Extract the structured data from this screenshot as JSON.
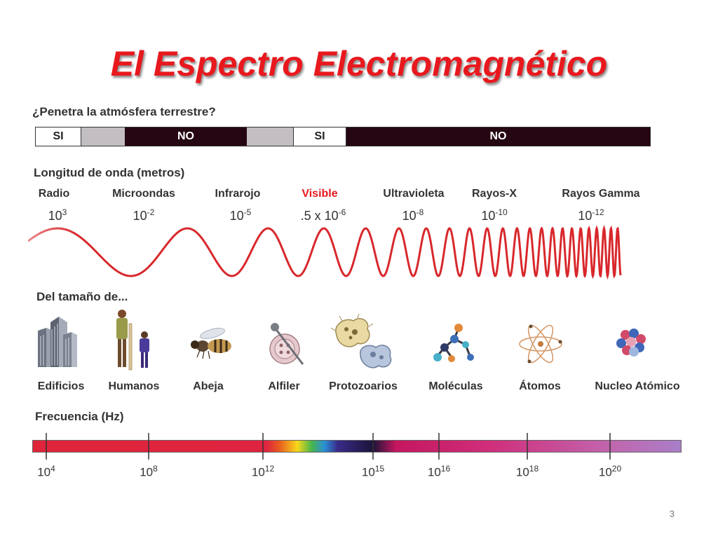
{
  "title": "El Espectro Electromagnético",
  "atmosphere": {
    "question": "¿Penetra la atmósfera terrestre?",
    "segments": [
      {
        "label": "SI",
        "kind": "si"
      },
      {
        "label": "",
        "kind": "gray"
      },
      {
        "label": "NO",
        "kind": "no"
      },
      {
        "label": "",
        "kind": "gray"
      },
      {
        "label": "SI",
        "kind": "si"
      },
      {
        "label": "NO",
        "kind": "no"
      }
    ]
  },
  "wavelength": {
    "heading": "Longitud de onda (metros)",
    "bands": [
      {
        "name": "Radio",
        "base": "10",
        "exp": "3"
      },
      {
        "name": "Microondas",
        "base": "10",
        "exp": "-2"
      },
      {
        "name": "Infrarojo",
        "base": "10",
        "exp": "-5"
      },
      {
        "name": "Visible",
        "base": ".5 x 10",
        "exp": "-6"
      },
      {
        "name": "Ultravioleta",
        "base": "10",
        "exp": "-8"
      },
      {
        "name": "Rayos-X",
        "base": "10",
        "exp": "-10"
      },
      {
        "name": "Rayos Gamma",
        "base": "10",
        "exp": "-12"
      }
    ]
  },
  "size": {
    "heading": "Del tamaño de...",
    "items": [
      {
        "label": "Edificios",
        "icon": "buildings-icon"
      },
      {
        "label": "Humanos",
        "icon": "humans-icon"
      },
      {
        "label": "Abeja",
        "icon": "bee-icon"
      },
      {
        "label": "Alfiler",
        "icon": "pin-icon"
      },
      {
        "label": "Protozoarios",
        "icon": "protozoa-icon"
      },
      {
        "label": "Moléculas",
        "icon": "molecule-icon"
      },
      {
        "label": "Átomos",
        "icon": "atom-icon"
      },
      {
        "label": "Nucleo Atómico",
        "icon": "nucleus-icon"
      }
    ]
  },
  "frequency": {
    "heading": "Frecuencia (Hz)",
    "ticks": [
      {
        "base": "10",
        "exp": "4"
      },
      {
        "base": "10",
        "exp": "8"
      },
      {
        "base": "10",
        "exp": "12"
      },
      {
        "base": "10",
        "exp": "15"
      },
      {
        "base": "10",
        "exp": "16"
      },
      {
        "base": "10",
        "exp": "18"
      },
      {
        "base": "10",
        "exp": "20"
      }
    ]
  },
  "colors": {
    "title": "#e8191e",
    "wave": "#d8282c",
    "no_band": "#250612",
    "gray_band": "#c2bec2"
  },
  "page_number": "3"
}
